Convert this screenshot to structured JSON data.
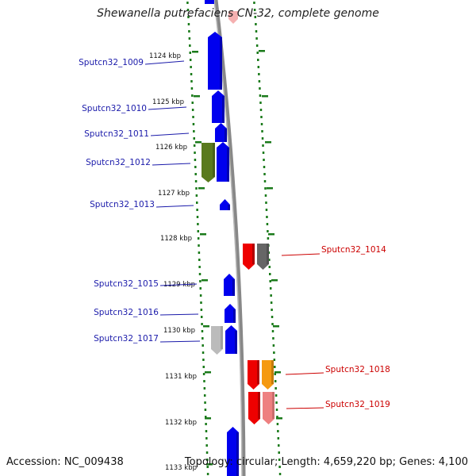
{
  "title": "Shewanella putrefaciens CN-32, complete genome",
  "footer": {
    "accession": "Accession: NC_009438",
    "topology": "Topology: circular; Length: 4,659,220 bp; Genes: 4,100"
  },
  "colors": {
    "forward_gene": "#0000ee",
    "reverse_gene": "#ee0000",
    "reverse_pseudo": "#ee8080",
    "olive_gene": "#5a7a1e",
    "gray_gene": "#666666",
    "light_gray_gene": "#bbbbbb",
    "orange_gene": "#f59a10",
    "backbone": "#888888",
    "tick": "#1a7a1a"
  },
  "scale": {
    "unit": "kbp",
    "ticks": [
      "1124 kbp",
      "1125 kbp",
      "1126 kbp",
      "1127 kbp",
      "1128 kbp",
      "1129 kbp",
      "1130 kbp",
      "1131 kbp",
      "1132 kbp",
      "1133 kbp"
    ]
  },
  "genes": [
    {
      "label": "Sputcn32_1009",
      "strand": "forward",
      "color": "forward_gene"
    },
    {
      "label": "Sputcn32_1010",
      "strand": "forward",
      "color": "forward_gene"
    },
    {
      "label": "Sputcn32_1011",
      "strand": "forward",
      "color": "forward_gene"
    },
    {
      "label": "Sputcn32_1012",
      "strand": "forward",
      "color": "forward_gene"
    },
    {
      "label": "Sputcn32_1013",
      "strand": "forward",
      "color": "forward_gene"
    },
    {
      "label": "Sputcn32_1014",
      "strand": "reverse",
      "color": "reverse_gene"
    },
    {
      "label": "Sputcn32_1015",
      "strand": "forward",
      "color": "forward_gene"
    },
    {
      "label": "Sputcn32_1016",
      "strand": "forward",
      "color": "forward_gene"
    },
    {
      "label": "Sputcn32_1017",
      "strand": "forward",
      "color": "forward_gene"
    },
    {
      "label": "Sputcn32_1018",
      "strand": "reverse",
      "color": "reverse_gene"
    },
    {
      "label": "Sputcn32_1019",
      "strand": "reverse",
      "color": "reverse_gene"
    }
  ]
}
